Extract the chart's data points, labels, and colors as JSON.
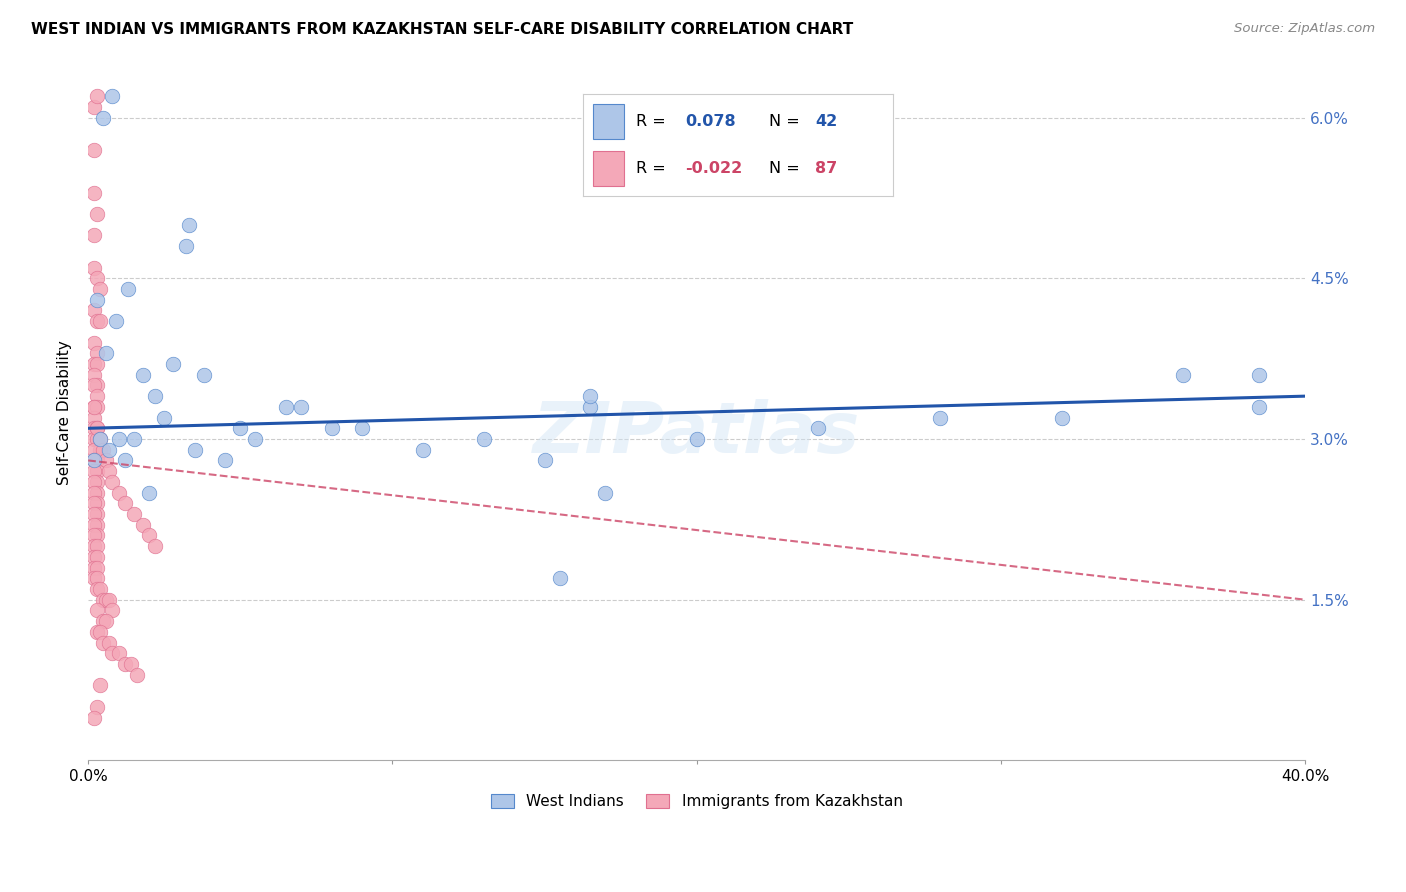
{
  "title": "WEST INDIAN VS IMMIGRANTS FROM KAZAKHSTAN SELF-CARE DISABILITY CORRELATION CHART",
  "source": "Source: ZipAtlas.com",
  "ylabel": "Self-Care Disability",
  "xmin": 0.0,
  "xmax": 0.4,
  "ymin": 0.0,
  "ymax": 0.065,
  "yticks": [
    0.0,
    0.015,
    0.03,
    0.045,
    0.06
  ],
  "ytick_labels": [
    "",
    "1.5%",
    "3.0%",
    "4.5%",
    "6.0%"
  ],
  "xticks": [
    0.0,
    0.1,
    0.2,
    0.3,
    0.4
  ],
  "xtick_labels": [
    "0.0%",
    "",
    "",
    "",
    "40.0%"
  ],
  "blue_R": 0.078,
  "blue_N": 42,
  "pink_R": -0.022,
  "pink_N": 87,
  "blue_color": "#aec6e8",
  "pink_color": "#f4a8b8",
  "blue_line_color": "#2255aa",
  "pink_line_color": "#cc4466",
  "watermark": "ZIPatlas",
  "blue_line_x": [
    0.0,
    0.4
  ],
  "blue_line_y": [
    0.031,
    0.034
  ],
  "pink_line_x": [
    0.0,
    0.4
  ],
  "pink_line_y": [
    0.028,
    0.015
  ],
  "blue_scatter_x": [
    0.005,
    0.008,
    0.032,
    0.033,
    0.003,
    0.006,
    0.009,
    0.013,
    0.018,
    0.022,
    0.028,
    0.038,
    0.05,
    0.065,
    0.08,
    0.01,
    0.015,
    0.025,
    0.035,
    0.045,
    0.055,
    0.07,
    0.09,
    0.11,
    0.13,
    0.15,
    0.17,
    0.2,
    0.24,
    0.28,
    0.32,
    0.36,
    0.385,
    0.385,
    0.165,
    0.165,
    0.002,
    0.004,
    0.007,
    0.012,
    0.02,
    0.155
  ],
  "blue_scatter_y": [
    0.06,
    0.062,
    0.048,
    0.05,
    0.043,
    0.038,
    0.041,
    0.044,
    0.036,
    0.034,
    0.037,
    0.036,
    0.031,
    0.033,
    0.031,
    0.03,
    0.03,
    0.032,
    0.029,
    0.028,
    0.03,
    0.033,
    0.031,
    0.029,
    0.03,
    0.028,
    0.025,
    0.03,
    0.031,
    0.032,
    0.032,
    0.036,
    0.036,
    0.033,
    0.033,
    0.034,
    0.028,
    0.03,
    0.029,
    0.028,
    0.025,
    0.017
  ],
  "pink_scatter_x": [
    0.002,
    0.003,
    0.002,
    0.002,
    0.003,
    0.002,
    0.002,
    0.003,
    0.004,
    0.002,
    0.003,
    0.004,
    0.002,
    0.003,
    0.002,
    0.003,
    0.002,
    0.003,
    0.002,
    0.003,
    0.002,
    0.003,
    0.002,
    0.002,
    0.003,
    0.002,
    0.003,
    0.004,
    0.002,
    0.003,
    0.002,
    0.003,
    0.002,
    0.003,
    0.002,
    0.003,
    0.002,
    0.003,
    0.002,
    0.003,
    0.002,
    0.003,
    0.002,
    0.003,
    0.002,
    0.002,
    0.003,
    0.002,
    0.003,
    0.002,
    0.003,
    0.002,
    0.003,
    0.003,
    0.004,
    0.005,
    0.006,
    0.007,
    0.008,
    0.003,
    0.005,
    0.006,
    0.003,
    0.004,
    0.005,
    0.007,
    0.008,
    0.01,
    0.012,
    0.014,
    0.016,
    0.002,
    0.003,
    0.004,
    0.005,
    0.006,
    0.007,
    0.008,
    0.01,
    0.012,
    0.015,
    0.018,
    0.02,
    0.022,
    0.003,
    0.004,
    0.002
  ],
  "pink_scatter_y": [
    0.061,
    0.062,
    0.057,
    0.053,
    0.051,
    0.049,
    0.046,
    0.045,
    0.044,
    0.042,
    0.041,
    0.041,
    0.039,
    0.038,
    0.037,
    0.037,
    0.036,
    0.035,
    0.035,
    0.034,
    0.033,
    0.033,
    0.032,
    0.031,
    0.031,
    0.03,
    0.03,
    0.029,
    0.029,
    0.028,
    0.028,
    0.027,
    0.027,
    0.026,
    0.026,
    0.025,
    0.025,
    0.024,
    0.024,
    0.023,
    0.023,
    0.022,
    0.022,
    0.021,
    0.021,
    0.02,
    0.02,
    0.019,
    0.019,
    0.018,
    0.018,
    0.017,
    0.017,
    0.016,
    0.016,
    0.015,
    0.015,
    0.015,
    0.014,
    0.014,
    0.013,
    0.013,
    0.012,
    0.012,
    0.011,
    0.011,
    0.01,
    0.01,
    0.009,
    0.009,
    0.008,
    0.033,
    0.031,
    0.03,
    0.029,
    0.028,
    0.027,
    0.026,
    0.025,
    0.024,
    0.023,
    0.022,
    0.021,
    0.02,
    0.005,
    0.007,
    0.004
  ]
}
